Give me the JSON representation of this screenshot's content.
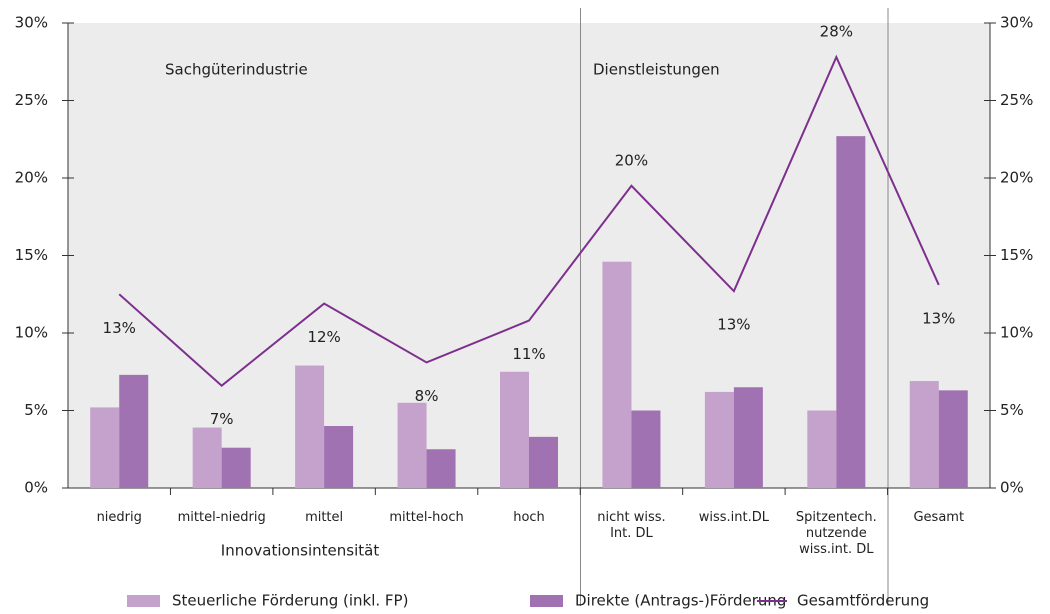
{
  "chart_data": {
    "type": "bar-line",
    "categories": [
      "niedrig",
      "mittel-niedrig",
      "mittel",
      "mittel-hoch",
      "hoch",
      "nicht wiss.\nInt. DL",
      "wiss.int.DL",
      "Spitzentech.\nnutzende\nwiss.int. DL",
      "Gesamt"
    ],
    "x_label": "Innovationsintensität",
    "annotations": [
      "Sachgüterindustrie",
      "Dienstleistungen"
    ],
    "series": [
      {
        "name": "Steuerliche Förderung (inkl. FP)",
        "type": "bar",
        "color": "#c4a2cc",
        "values": [
          5.2,
          3.9,
          7.9,
          5.5,
          7.5,
          14.6,
          6.2,
          5.0,
          6.9
        ]
      },
      {
        "name": "Direkte (Antrags-)Förderung",
        "type": "bar",
        "color": "#a172b1",
        "values": [
          7.3,
          2.6,
          4.0,
          2.5,
          3.3,
          5.0,
          6.5,
          22.7,
          6.3
        ]
      },
      {
        "name": "Gesamtförderung",
        "type": "line",
        "color": "#7d2f8e",
        "values": [
          12.5,
          6.6,
          11.9,
          8.1,
          10.8,
          19.5,
          12.7,
          27.8,
          13.1
        ],
        "value_labels": [
          "13%",
          "7%",
          "12%",
          "8%",
          "11%",
          "20%",
          "13%",
          "28%",
          "13%"
        ]
      }
    ],
    "ylim": [
      0,
      30
    ],
    "yticks": [
      {
        "value": 0,
        "label": "0%"
      },
      {
        "value": 5,
        "label": "5%"
      },
      {
        "value": 10,
        "label": "10%"
      },
      {
        "value": 15,
        "label": "15%"
      },
      {
        "value": 20,
        "label": "20%"
      },
      {
        "value": 25,
        "label": "25%"
      },
      {
        "value": 30,
        "label": "30%"
      }
    ],
    "y2lim": [
      0,
      30
    ],
    "y2ticks": [
      {
        "value": 0,
        "label": "0%"
      },
      {
        "value": 5,
        "label": "5%"
      },
      {
        "value": 10,
        "label": "10%"
      },
      {
        "value": 15,
        "label": "15%"
      },
      {
        "value": 20,
        "label": "20%"
      },
      {
        "value": 25,
        "label": "25%"
      },
      {
        "value": 30,
        "label": "30%"
      }
    ],
    "legend": "bottom"
  }
}
